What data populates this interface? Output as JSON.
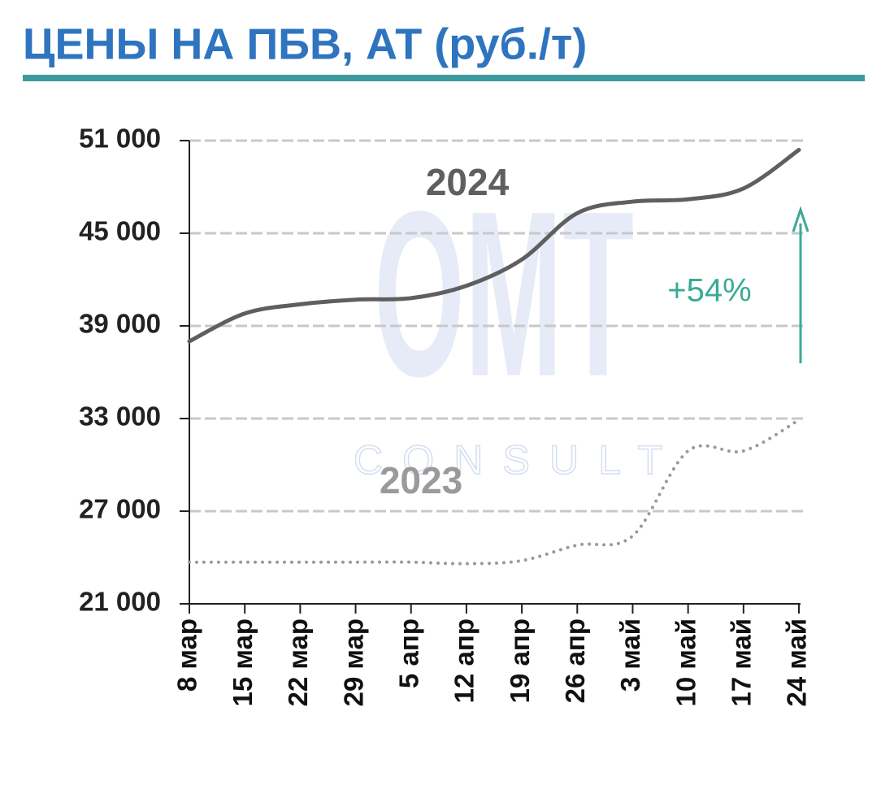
{
  "chart_data": {
    "type": "line",
    "title": "ЦЕНЫ НА ПБВ, АТ (руб./т)",
    "categories": [
      "8 мар",
      "15 мар",
      "22 мар",
      "29 мар",
      "5 апр",
      "12 апр",
      "19 апр",
      "26 апр",
      "3 май",
      "10 май",
      "17 май",
      "24 май"
    ],
    "series": [
      {
        "name": "2024",
        "color": "#5f5f5f",
        "style": "solid",
        "values": [
          38000,
          39800,
          40400,
          40700,
          40800,
          41600,
          43300,
          46300,
          47050,
          47200,
          47900,
          50400
        ]
      },
      {
        "name": "2023",
        "color": "#9a9a9a",
        "style": "dotted",
        "values": [
          23700,
          23700,
          23700,
          23700,
          23700,
          23600,
          23800,
          24800,
          25400,
          30900,
          30900,
          32900
        ]
      }
    ],
    "ylim": [
      21000,
      51000
    ],
    "yticks": [
      {
        "value": 21000,
        "label": "21 000"
      },
      {
        "value": 27000,
        "label": "27 000"
      },
      {
        "value": 33000,
        "label": "33 000"
      },
      {
        "value": 39000,
        "label": "39 000"
      },
      {
        "value": 45000,
        "label": "45 000"
      },
      {
        "value": 51000,
        "label": "51 000"
      }
    ],
    "grid": true,
    "annotation": "+54%",
    "annotation_color": "#3aaa94",
    "watermark": [
      "OMT",
      "CONSULT"
    ]
  }
}
